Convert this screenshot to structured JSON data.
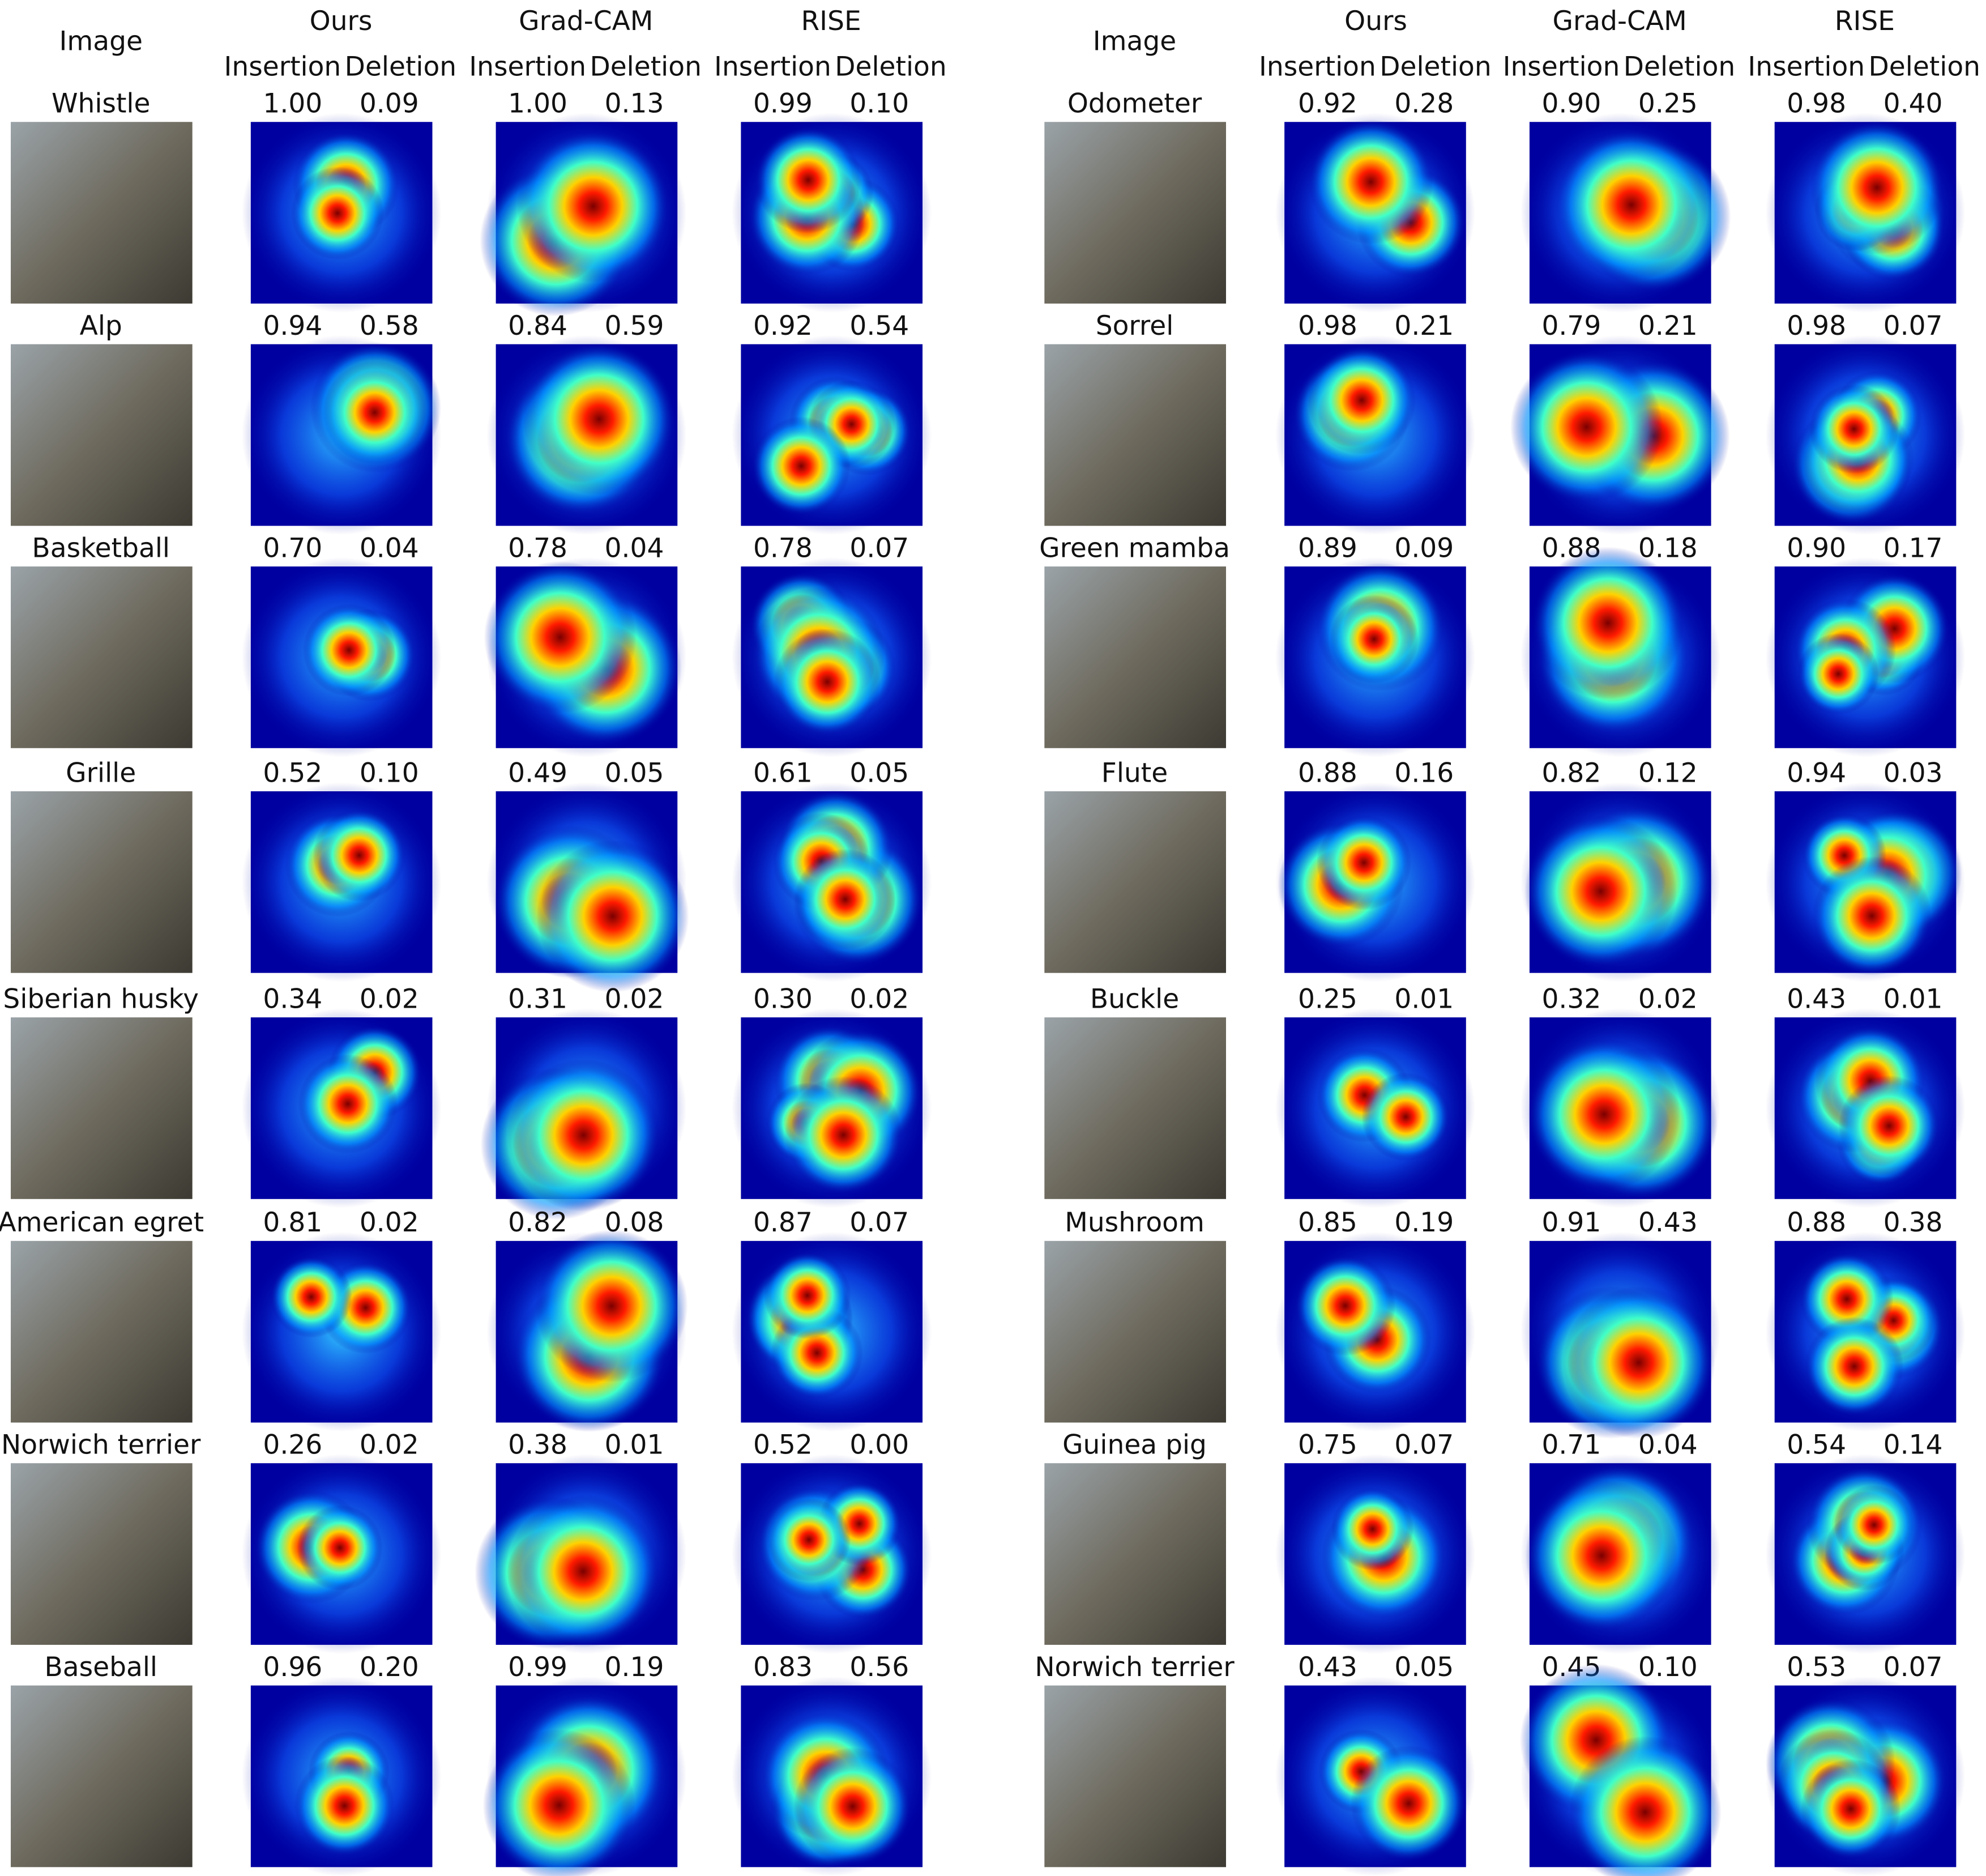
{
  "panels": [
    {
      "image_header": "Image",
      "methods": [
        {
          "name": "Ours",
          "metrics": [
            "Insertion",
            "Deletion"
          ]
        },
        {
          "name": "Grad-CAM",
          "metrics": [
            "Insertion",
            "Deletion"
          ]
        },
        {
          "name": "RISE",
          "metrics": [
            "Insertion",
            "Deletion"
          ]
        }
      ],
      "rows": [
        {
          "label": "Whistle",
          "scores": [
            "1.00",
            "0.09",
            "1.00",
            "0.13",
            "0.99",
            "0.10"
          ]
        },
        {
          "label": "Alp",
          "scores": [
            "0.94",
            "0.58",
            "0.84",
            "0.59",
            "0.92",
            "0.54"
          ]
        },
        {
          "label": "Basketball",
          "scores": [
            "0.70",
            "0.04",
            "0.78",
            "0.04",
            "0.78",
            "0.07"
          ]
        },
        {
          "label": "Grille",
          "scores": [
            "0.52",
            "0.10",
            "0.49",
            "0.05",
            "0.61",
            "0.05"
          ]
        },
        {
          "label": "Siberian husky",
          "scores": [
            "0.34",
            "0.02",
            "0.31",
            "0.02",
            "0.30",
            "0.02"
          ]
        },
        {
          "label": "American egret",
          "scores": [
            "0.81",
            "0.02",
            "0.82",
            "0.08",
            "0.87",
            "0.07"
          ]
        },
        {
          "label": "Norwich terrier",
          "scores": [
            "0.26",
            "0.02",
            "0.38",
            "0.01",
            "0.52",
            "0.00"
          ]
        },
        {
          "label": "Baseball",
          "scores": [
            "0.96",
            "0.20",
            "0.99",
            "0.19",
            "0.83",
            "0.56"
          ]
        }
      ]
    },
    {
      "image_header": "Image",
      "methods": [
        {
          "name": "Ours",
          "metrics": [
            "Insertion",
            "Deletion"
          ]
        },
        {
          "name": "Grad-CAM",
          "metrics": [
            "Insertion",
            "Deletion"
          ]
        },
        {
          "name": "RISE",
          "metrics": [
            "Insertion",
            "Deletion"
          ]
        }
      ],
      "rows": [
        {
          "label": "Odometer",
          "scores": [
            "0.92",
            "0.28",
            "0.90",
            "0.25",
            "0.98",
            "0.40"
          ]
        },
        {
          "label": "Sorrel",
          "scores": [
            "0.98",
            "0.21",
            "0.79",
            "0.21",
            "0.98",
            "0.07"
          ]
        },
        {
          "label": "Green mamba",
          "scores": [
            "0.89",
            "0.09",
            "0.88",
            "0.18",
            "0.90",
            "0.17"
          ]
        },
        {
          "label": "Flute",
          "scores": [
            "0.88",
            "0.16",
            "0.82",
            "0.12",
            "0.94",
            "0.03"
          ]
        },
        {
          "label": "Buckle",
          "scores": [
            "0.25",
            "0.01",
            "0.32",
            "0.02",
            "0.43",
            "0.01"
          ]
        },
        {
          "label": "Mushroom",
          "scores": [
            "0.85",
            "0.19",
            "0.91",
            "0.43",
            "0.88",
            "0.38"
          ]
        },
        {
          "label": "Guinea pig",
          "scores": [
            "0.75",
            "0.07",
            "0.71",
            "0.04",
            "0.54",
            "0.14"
          ]
        },
        {
          "label": "Norwich terrier",
          "scores": [
            "0.43",
            "0.05",
            "0.45",
            "0.10",
            "0.53",
            "0.07"
          ]
        }
      ]
    }
  ]
}
